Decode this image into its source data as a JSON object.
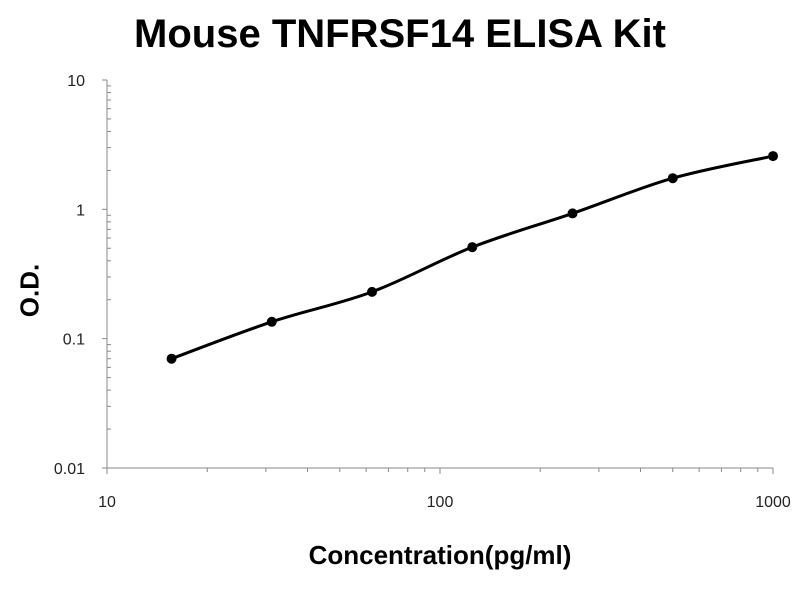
{
  "chart_data": {
    "type": "line",
    "title": "Mouse TNFRSF14 ELISA Kit",
    "xlabel": "Concentration(pg/ml)",
    "ylabel": "O.D.",
    "x_scale": "log",
    "y_scale": "log",
    "xlim": [
      10,
      1000
    ],
    "ylim": [
      0.01,
      10
    ],
    "x_ticks": [
      "10",
      "100",
      "1000"
    ],
    "y_ticks": [
      "10",
      "1",
      "0.1",
      "0.01"
    ],
    "grid": false,
    "series": [
      {
        "x": [
          15.625,
          31.25,
          62.5,
          125,
          250,
          500,
          1000
        ],
        "y": [
          0.07,
          0.135,
          0.23,
          0.51,
          0.93,
          1.74,
          2.58
        ],
        "markers": true,
        "smooth_fit": true,
        "color": "#000000"
      }
    ]
  }
}
